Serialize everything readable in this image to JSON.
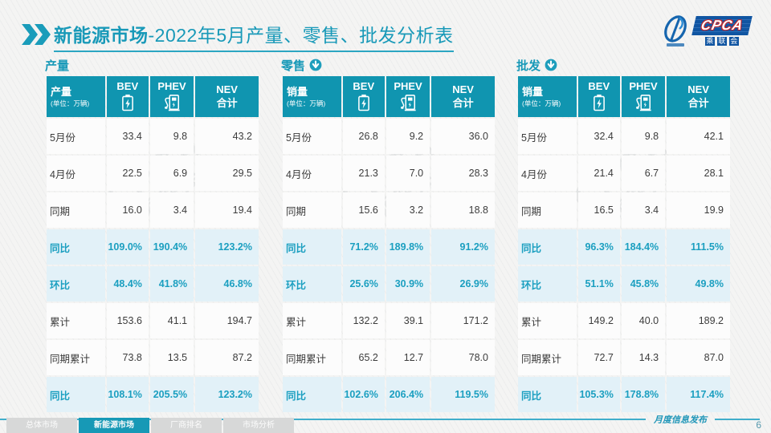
{
  "page": {
    "title_emphasis": "新能源市场",
    "title_rest": "-2022年5月产量、零售、批发分析表",
    "footer_caption": "月度信息发布",
    "page_number": "6",
    "watermark_text": "CPCA",
    "watermark_text2": "乘联会"
  },
  "logo": {
    "brand": "CPCA",
    "brand_sub": [
      "乘",
      "联",
      "会"
    ]
  },
  "row_labels": [
    "5月份",
    "4月份",
    "同期",
    "同比",
    "环比",
    "累计",
    "同期累计",
    "同比"
  ],
  "tables": [
    {
      "section_title": "产量",
      "corner_label": "产量",
      "corner_unit": "(单位：万辆)",
      "columns": [
        {
          "label": "BEV",
          "icon": "battery-icon"
        },
        {
          "label": "PHEV",
          "icon": "charger-icon"
        },
        {
          "label": "NEV",
          "label2": "合计"
        }
      ],
      "rows": [
        [
          "33.4",
          "9.8",
          "43.2"
        ],
        [
          "22.5",
          "6.9",
          "29.5"
        ],
        [
          "16.0",
          "3.4",
          "19.4"
        ],
        [
          "109.0%",
          "190.4%",
          "123.2%"
        ],
        [
          "48.4%",
          "41.8%",
          "46.8%"
        ],
        [
          "153.6",
          "41.1",
          "194.7"
        ],
        [
          "73.8",
          "13.5",
          "87.2"
        ],
        [
          "108.1%",
          "205.5%",
          "123.2%"
        ]
      ]
    },
    {
      "section_title": "零售",
      "corner_label": "销量",
      "corner_unit": "(单位：万辆)",
      "columns": [
        {
          "label": "BEV",
          "icon": "battery-icon"
        },
        {
          "label": "PHEV",
          "icon": "charger-icon"
        },
        {
          "label": "NEV",
          "label2": "合计"
        }
      ],
      "rows": [
        [
          "26.8",
          "9.2",
          "36.0"
        ],
        [
          "21.3",
          "7.0",
          "28.3"
        ],
        [
          "15.6",
          "3.2",
          "18.8"
        ],
        [
          "71.2%",
          "189.8%",
          "91.2%"
        ],
        [
          "25.6%",
          "30.9%",
          "26.9%"
        ],
        [
          "132.2",
          "39.1",
          "171.2"
        ],
        [
          "65.2",
          "12.7",
          "78.0"
        ],
        [
          "102.6%",
          "206.4%",
          "119.5%"
        ]
      ]
    },
    {
      "section_title": "批发",
      "corner_label": "销量",
      "corner_unit": "(单位：万辆)",
      "columns": [
        {
          "label": "BEV",
          "icon": "battery-icon"
        },
        {
          "label": "PHEV",
          "icon": "charger-icon"
        },
        {
          "label": "NEV",
          "label2": "合计"
        }
      ],
      "rows": [
        [
          "32.4",
          "9.8",
          "42.1"
        ],
        [
          "21.4",
          "6.7",
          "28.1"
        ],
        [
          "16.5",
          "3.4",
          "19.9"
        ],
        [
          "96.3%",
          "184.4%",
          "111.5%"
        ],
        [
          "51.1%",
          "45.8%",
          "49.8%"
        ],
        [
          "149.2",
          "40.0",
          "189.2"
        ],
        [
          "72.7",
          "14.3",
          "87.0"
        ],
        [
          "105.3%",
          "178.8%",
          "117.4%"
        ]
      ]
    }
  ],
  "layout_hints": {
    "percent_row_indexes": [
      3,
      4,
      7
    ],
    "tables_with_arrow": [
      1,
      2
    ]
  },
  "footer_tabs": [
    {
      "label": "总体市场",
      "active": false
    },
    {
      "label": "新能源市场",
      "active": true
    },
    {
      "label": "厂商排名",
      "active": false
    },
    {
      "label": "市场分析",
      "active": false
    }
  ],
  "colors": {
    "teal_title": "#1899b8",
    "header_cell_bg": "#1095b0",
    "percent_row_bg": "#e2f1f8",
    "percent_text": "#1b9fc0",
    "active_tab_bg": "#1799b6",
    "inactive_tab_bg": "#d7d8d8",
    "logo_blue": "#1055a2",
    "logo_red_outline": "#c1272d",
    "rule_teal": "#41aecb"
  }
}
